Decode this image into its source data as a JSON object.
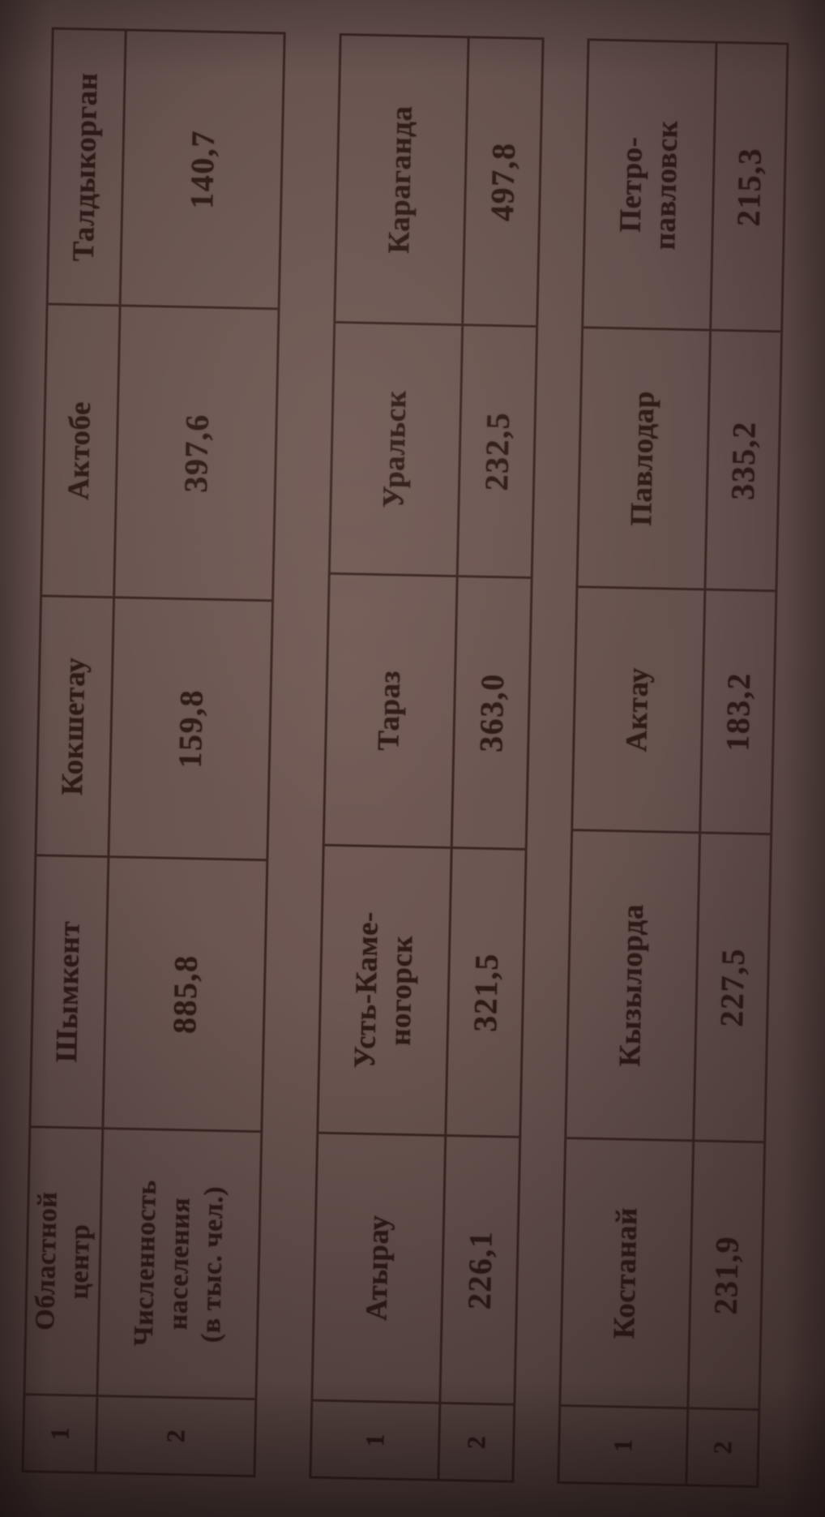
{
  "colors": {
    "paper": "#64504c",
    "ink": "#2e1a17",
    "grid_line": "#3a2522"
  },
  "tables": [
    {
      "rows": [
        {
          "label": "1",
          "cells": [
            "Областной\nцентр",
            "Шымкент",
            "Кокшетау",
            "Актобе",
            "Талдыкорган"
          ]
        },
        {
          "label": "2",
          "cells": [
            "Численность\nнаселения\n(в тыс. чел.)",
            "885,8",
            "159,8",
            "397,6",
            "140,7"
          ]
        }
      ]
    },
    {
      "rows": [
        {
          "label": "1",
          "cells": [
            "Атырау",
            "Усть-Каме-\nногорск",
            "Тараз",
            "Уральск",
            "Караганда"
          ]
        },
        {
          "label": "2",
          "cells": [
            "226,1",
            "321,5",
            "363,0",
            "232,5",
            "497,8"
          ]
        }
      ]
    },
    {
      "rows": [
        {
          "label": "1",
          "cells": [
            "Костанай",
            "Кызылорда",
            "Актау",
            "Павлодар",
            "Петро-\nпавловск"
          ]
        },
        {
          "label": "2",
          "cells": [
            "231,9",
            "227,5",
            "183,2",
            "335,2",
            "215,3"
          ]
        }
      ]
    }
  ]
}
